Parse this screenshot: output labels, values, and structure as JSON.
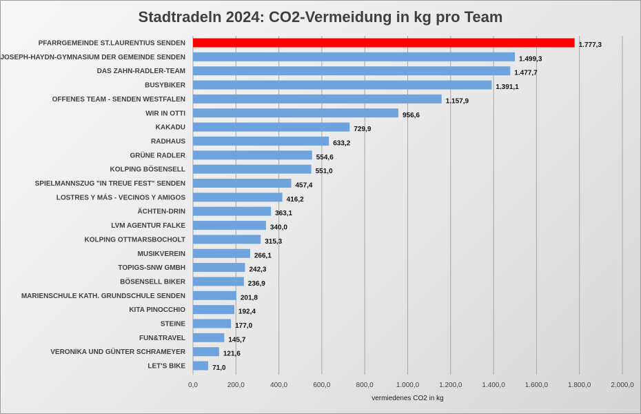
{
  "chart_data": {
    "type": "bar",
    "orientation": "horizontal",
    "title": "Stadtradeln 2024: CO2-Vermeidung in kg pro Team",
    "xlabel": "vermiedenes CO2 in kg",
    "ylabel": "",
    "xlim": [
      0,
      2000
    ],
    "grid": true,
    "legend": "none",
    "x_ticks": [
      "0,0",
      "200,0",
      "400,0",
      "600,0",
      "800,0",
      "1.000,0",
      "1.200,0",
      "1.400,0",
      "1.600,0",
      "1.800,0",
      "2.000,0"
    ],
    "x_tick_values": [
      0,
      200,
      400,
      600,
      800,
      1000,
      1200,
      1400,
      1600,
      1800,
      2000
    ],
    "categories": [
      "PFARRGEMEINDE ST.LAURENTIUS SENDEN",
      "JOSEPH-HAYDN-GYMNASIUM DER GEMEINDE SENDEN",
      "DAS ZAHN-RADLER-TEAM",
      "BUSYBIKER",
      "OFFENES TEAM - SENDEN WESTFALEN",
      "WIR IN OTTI",
      "KAKADU",
      "RADHAUS",
      "GRÜNE RADLER",
      "KOLPING BÖSENSELL",
      "SPIELMANNSZUG \"IN TREUE FEST\" SENDEN",
      "LOSTRES Y MÁS - VECINOS Y AMIGOS",
      "ÄCHTEN-DRIN",
      "LVM AGENTUR FALKE",
      "KOLPING OTTMARSBOCHOLT",
      "MUSIKVEREIN",
      "TOPIGS-SNW GMBH",
      "BÖSENSELL BIKER",
      "MARIENSCHULE KATH. GRUNDSCHULE SENDEN",
      "KITA PINOCCHIO",
      "STEINE",
      "FUN&TRAVEL",
      "VERONIKA UND GÜNTER SCHRAMEYER",
      "LET'S BIKE"
    ],
    "values": [
      1777.3,
      1499.3,
      1477.7,
      1391.1,
      1157.9,
      956.6,
      729.9,
      633.2,
      554.6,
      551.0,
      457.4,
      416.2,
      363.1,
      340.0,
      315.3,
      266.1,
      242.3,
      236.9,
      201.8,
      192.4,
      177.0,
      145.7,
      121.6,
      71.0
    ],
    "value_labels": [
      "1.777,3",
      "1.499,3",
      "1.477,7",
      "1.391,1",
      "1.157,9",
      "956,6",
      "729,9",
      "633,2",
      "554,6",
      "551,0",
      "457,4",
      "416,2",
      "363,1",
      "340,0",
      "315,3",
      "266,1",
      "242,3",
      "236,9",
      "201,8",
      "192,4",
      "177,0",
      "145,7",
      "121,6",
      "71,0"
    ],
    "colors": {
      "bar": "#6fa3dd",
      "highlight": "#ff0000",
      "grid": "#a6a6a6"
    },
    "highlight_index": 0
  }
}
